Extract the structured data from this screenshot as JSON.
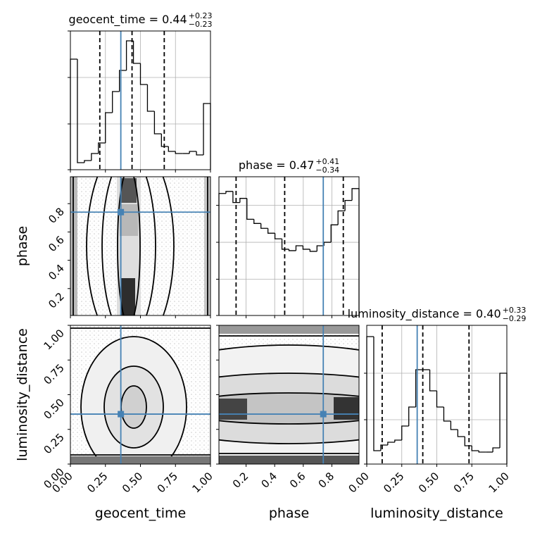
{
  "chart_data": {
    "type": "corner",
    "truth_color": "#4682b4",
    "hist_color": "#000000",
    "hist_grid": true,
    "parameters": [
      {
        "name": "geocent_time",
        "title": "geocent_time = 0.44",
        "title_upper": "+0.23",
        "title_lower": "−0.23",
        "lim": [
          0,
          1
        ],
        "xticks": [
          {
            "value": 0,
            "label": "0.00"
          },
          {
            "value": 0.25,
            "label": "0.25"
          },
          {
            "value": 0.5,
            "label": "0.50"
          },
          {
            "value": 0.75,
            "label": "0.75"
          },
          {
            "value": 1,
            "label": "1.00"
          }
        ],
        "truth": 0.36,
        "quantiles": [
          0.21,
          0.44,
          0.67
        ],
        "bins": [
          0,
          0.05,
          0.1,
          0.15,
          0.2,
          0.25,
          0.3,
          0.35,
          0.4,
          0.45,
          0.5,
          0.55,
          0.6,
          0.65,
          0.7,
          0.75,
          0.8,
          0.85,
          0.9,
          0.95,
          1
        ],
        "counts": [
          157,
          10,
          13,
          23,
          38,
          81,
          111,
          141,
          183,
          151,
          121,
          83,
          51,
          33,
          26,
          23,
          23,
          26,
          21,
          94
        ],
        "hist_ylim": [
          0,
          197
        ],
        "hist_yticks": [
          0,
          65,
          131,
          197
        ]
      },
      {
        "name": "phase",
        "title": "phase = 0.47",
        "title_upper": "+0.41",
        "title_lower": "−0.34",
        "lim": [
          0.01,
          0.99
        ],
        "xticks": [
          0.2,
          0.4,
          0.6,
          0.8
        ],
        "truth": 0.74,
        "quantiles": [
          0.13,
          0.47,
          0.88
        ],
        "bins": [
          0.01,
          0.059,
          0.108,
          0.157,
          0.206,
          0.255,
          0.304,
          0.353,
          0.402,
          0.451,
          0.5,
          0.549,
          0.598,
          0.647,
          0.696,
          0.745,
          0.794,
          0.843,
          0.892,
          0.941,
          0.99
        ],
        "counts": [
          175,
          178,
          162,
          168,
          138,
          132,
          125,
          118,
          110,
          95,
          93,
          100,
          95,
          92,
          100,
          105,
          130,
          150,
          165,
          182
        ],
        "hist_ylim": [
          0,
          199
        ],
        "hist_yticks": [
          0,
          52,
          105,
          158
        ]
      },
      {
        "name": "luminosity_distance",
        "title": "luminosity_distance = 0.40",
        "title_upper": "+0.33",
        "title_lower": "−0.29",
        "lim": [
          0,
          1
        ],
        "xticks": [
          {
            "value": 0,
            "label": "0.00"
          },
          {
            "value": 0.25,
            "label": "0.25"
          },
          {
            "value": 0.5,
            "label": "0.50"
          },
          {
            "value": 0.75,
            "label": "0.75"
          },
          {
            "value": 1,
            "label": "1.00"
          }
        ],
        "truth": 0.36,
        "quantiles": [
          0.11,
          0.4,
          0.73
        ],
        "bins": [
          0,
          0.05,
          0.1,
          0.15,
          0.2,
          0.25,
          0.3,
          0.35,
          0.4,
          0.45,
          0.5,
          0.55,
          0.6,
          0.65,
          0.7,
          0.75,
          0.8,
          0.85,
          0.9,
          0.95,
          1
        ],
        "counts": [
          181,
          19,
          27,
          31,
          34,
          54,
          81,
          134,
          134,
          104,
          81,
          61,
          49,
          39,
          26,
          19,
          17,
          17,
          23,
          129
        ],
        "hist_ylim": [
          0,
          197
        ],
        "hist_yticks": [
          0,
          63,
          129
        ]
      }
    ]
  }
}
